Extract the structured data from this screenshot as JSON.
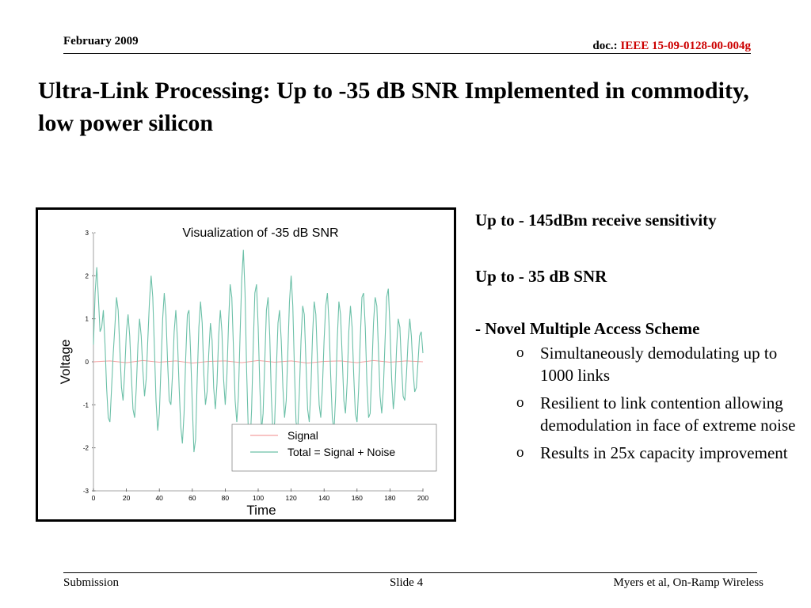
{
  "header": {
    "date": "February 2009",
    "doc_prefix": "doc.:",
    "doc_id": "IEEE 15-09-0128-00-004g"
  },
  "title": "Ultra-Link Processing: Up to -35 dB SNR Implemented in commodity, low power silicon",
  "bullets": {
    "sensitivity": "Up to - 145dBm receive sensitivity",
    "snr": "Up to - 35 dB SNR",
    "access": "- Novel Multiple Access Scheme",
    "sub_marker": "o",
    "sub_items": [
      "Simultaneously demodulating up to 1000 links",
      "Resilient to link contention allowing demodulation in face of extreme noise",
      "Results in 25x capacity improvement"
    ]
  },
  "footer": {
    "left": "Submission",
    "center": "Slide 4",
    "right": "Myers et al, On-Ramp Wireless"
  },
  "chart_data": {
    "type": "line",
    "title": "Visualization of -35 dB SNR",
    "xlabel": "Time",
    "ylabel": "Voltage",
    "xlim": [
      0,
      200
    ],
    "ylim": [
      -3,
      3
    ],
    "x_ticks": [
      "0",
      "20",
      "40",
      "60",
      "80",
      "100",
      "120",
      "140",
      "160",
      "180",
      "200"
    ],
    "y_ticks": [
      "3",
      "2",
      "1",
      "0",
      "-1",
      "-2",
      "-3"
    ],
    "grid": false,
    "legend_position": "lower-right",
    "series": [
      {
        "name": "Signal",
        "color": "#f4a0a0",
        "x": [
          0,
          10,
          20,
          30,
          40,
          50,
          60,
          70,
          80,
          90,
          100,
          110,
          120,
          130,
          140,
          150,
          160,
          170,
          180,
          190,
          200
        ],
        "y": [
          0,
          0.02,
          -0.02,
          0.03,
          -0.01,
          0.02,
          -0.03,
          0.01,
          0.02,
          -0.02,
          0.03,
          -0.01,
          0.02,
          -0.03,
          0.01,
          0.02,
          -0.02,
          0.03,
          -0.01,
          0.02,
          0
        ]
      },
      {
        "name": "Total = Signal + Noise",
        "color": "#6cc0a8",
        "x": [
          0,
          1,
          2,
          3,
          4,
          5,
          6,
          7,
          8,
          9,
          10,
          11,
          12,
          13,
          14,
          15,
          16,
          17,
          18,
          19,
          20,
          21,
          22,
          23,
          24,
          25,
          26,
          27,
          28,
          29,
          30,
          31,
          32,
          33,
          34,
          35,
          36,
          37,
          38,
          39,
          40,
          41,
          42,
          43,
          44,
          45,
          46,
          47,
          48,
          49,
          50,
          51,
          52,
          53,
          54,
          55,
          56,
          57,
          58,
          59,
          60,
          61,
          62,
          63,
          64,
          65,
          66,
          67,
          68,
          69,
          70,
          71,
          72,
          73,
          74,
          75,
          76,
          77,
          78,
          79,
          80,
          81,
          82,
          83,
          84,
          85,
          86,
          87,
          88,
          89,
          90,
          91,
          92,
          93,
          94,
          95,
          96,
          97,
          98,
          99,
          100,
          101,
          102,
          103,
          104,
          105,
          106,
          107,
          108,
          109,
          110,
          111,
          112,
          113,
          114,
          115,
          116,
          117,
          118,
          119,
          120,
          121,
          122,
          123,
          124,
          125,
          126,
          127,
          128,
          129,
          130,
          131,
          132,
          133,
          134,
          135,
          136,
          137,
          138,
          139,
          140,
          141,
          142,
          143,
          144,
          145,
          146,
          147,
          148,
          149,
          150,
          151,
          152,
          153,
          154,
          155,
          156,
          157,
          158,
          159,
          160,
          161,
          162,
          163,
          164,
          165,
          166,
          167,
          168,
          169,
          170,
          171,
          172,
          173,
          174,
          175,
          176,
          177,
          178,
          179,
          180,
          181,
          182,
          183,
          184,
          185,
          186,
          187,
          188,
          189,
          190,
          191,
          192,
          193,
          194,
          195,
          196,
          197,
          198,
          199,
          200
        ],
        "y": [
          0.4,
          1.6,
          2.2,
          1.5,
          0.7,
          0.8,
          1.2,
          0.4,
          -0.6,
          -1.3,
          -1.4,
          -0.6,
          0.2,
          0.8,
          1.5,
          1.2,
          0.3,
          -0.6,
          -0.9,
          -0.2,
          0.7,
          1.1,
          0.6,
          -0.3,
          -1.1,
          -1.3,
          -0.6,
          0.4,
          1.0,
          0.6,
          -0.2,
          -0.8,
          -0.4,
          0.5,
          1.4,
          2.0,
          1.5,
          0.3,
          -0.9,
          -1.6,
          -1.2,
          -0.1,
          1.0,
          1.6,
          1.1,
          0.0,
          -0.9,
          -1.0,
          -0.3,
          0.7,
          1.2,
          0.5,
          -0.6,
          -1.5,
          -1.9,
          -1.2,
          0.1,
          1.1,
          1.2,
          0.2,
          -1.0,
          -2.1,
          -1.8,
          -0.4,
          0.8,
          1.4,
          0.9,
          -0.3,
          -1.0,
          -0.7,
          0.2,
          0.9,
          0.5,
          -0.6,
          -1.1,
          -0.5,
          0.6,
          1.2,
          0.7,
          -0.4,
          -1.0,
          -0.3,
          0.9,
          1.8,
          1.5,
          0.3,
          -0.9,
          -1.4,
          -0.8,
          0.6,
          1.9,
          2.6,
          1.6,
          -0.2,
          -1.6,
          -2.0,
          -1.1,
          0.4,
          1.6,
          1.8,
          0.8,
          -0.6,
          -1.6,
          -1.2,
          0.0,
          1.2,
          1.5,
          0.6,
          -0.8,
          -1.7,
          -1.4,
          -0.2,
          0.9,
          1.2,
          0.5,
          -0.6,
          -1.3,
          -0.9,
          0.2,
          1.4,
          2.0,
          1.3,
          -0.2,
          -1.4,
          -1.6,
          -0.7,
          0.5,
          1.3,
          1.1,
          0.0,
          -1.1,
          -1.4,
          -0.6,
          0.6,
          1.4,
          1.1,
          0.0,
          -1.0,
          -1.3,
          -0.6,
          0.5,
          1.3,
          1.6,
          0.9,
          -0.3,
          -1.3,
          -1.6,
          -0.8,
          0.5,
          1.4,
          1.1,
          0.1,
          -0.9,
          -1.2,
          -0.5,
          0.7,
          1.3,
          0.8,
          -0.3,
          -1.2,
          -1.4,
          -0.6,
          0.6,
          1.5,
          1.6,
          0.8,
          -0.5,
          -1.3,
          -1.2,
          -0.2,
          0.9,
          1.5,
          1.3,
          0.3,
          -0.8,
          -1.2,
          -0.6,
          0.5,
          1.5,
          1.7,
          0.8,
          -0.4,
          -1.1,
          -0.7,
          0.3,
          1.0,
          0.8,
          -0.1,
          -0.8,
          -0.9,
          -0.3,
          0.5,
          1.0,
          0.6,
          -0.2,
          -0.7,
          -0.6,
          0.0,
          0.6,
          0.7,
          0.2
        ]
      }
    ]
  }
}
